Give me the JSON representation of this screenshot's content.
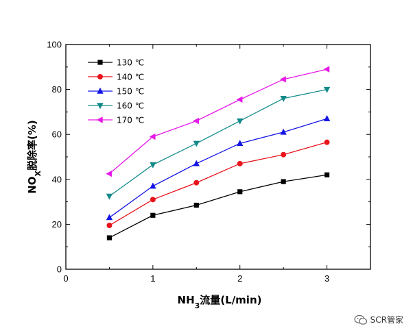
{
  "chart_data": {
    "type": "line",
    "xlabel_parts": [
      "NH",
      "3",
      "流量(L/min)"
    ],
    "ylabel_parts": [
      "NO",
      "X",
      "脱除率(%)"
    ],
    "xlim": [
      0,
      3.5
    ],
    "ylim": [
      0,
      100
    ],
    "xticks": [
      0,
      1,
      2,
      3
    ],
    "yticks": [
      0,
      20,
      40,
      60,
      80,
      100
    ],
    "grid": false,
    "legend_position": "top-left",
    "x": [
      0.5,
      1.0,
      1.5,
      2.0,
      2.5,
      3.0
    ],
    "series": [
      {
        "name": "130 ℃",
        "color": "#000000",
        "marker": "square",
        "values": [
          14,
          24,
          28.5,
          34.5,
          39,
          42
        ]
      },
      {
        "name": "140 ℃",
        "color": "#e8141c",
        "marker": "circle",
        "values": [
          19.5,
          31,
          38.5,
          47,
          51,
          56.5
        ]
      },
      {
        "name": "150 ℃",
        "color": "#1414e6",
        "marker": "triangle-up",
        "values": [
          23,
          37,
          47,
          56,
          61,
          67
        ]
      },
      {
        "name": "160 ℃",
        "color": "#138a8a",
        "marker": "triangle-down",
        "values": [
          32.5,
          46.5,
          56,
          66,
          76,
          80
        ]
      },
      {
        "name": "170 ℃",
        "color": "#e619e6",
        "marker": "triangle-left",
        "values": [
          42.5,
          59,
          66,
          75.5,
          84.5,
          89
        ]
      }
    ]
  },
  "watermark": {
    "text": "SCR管家",
    "icon": "wechat-icon"
  }
}
